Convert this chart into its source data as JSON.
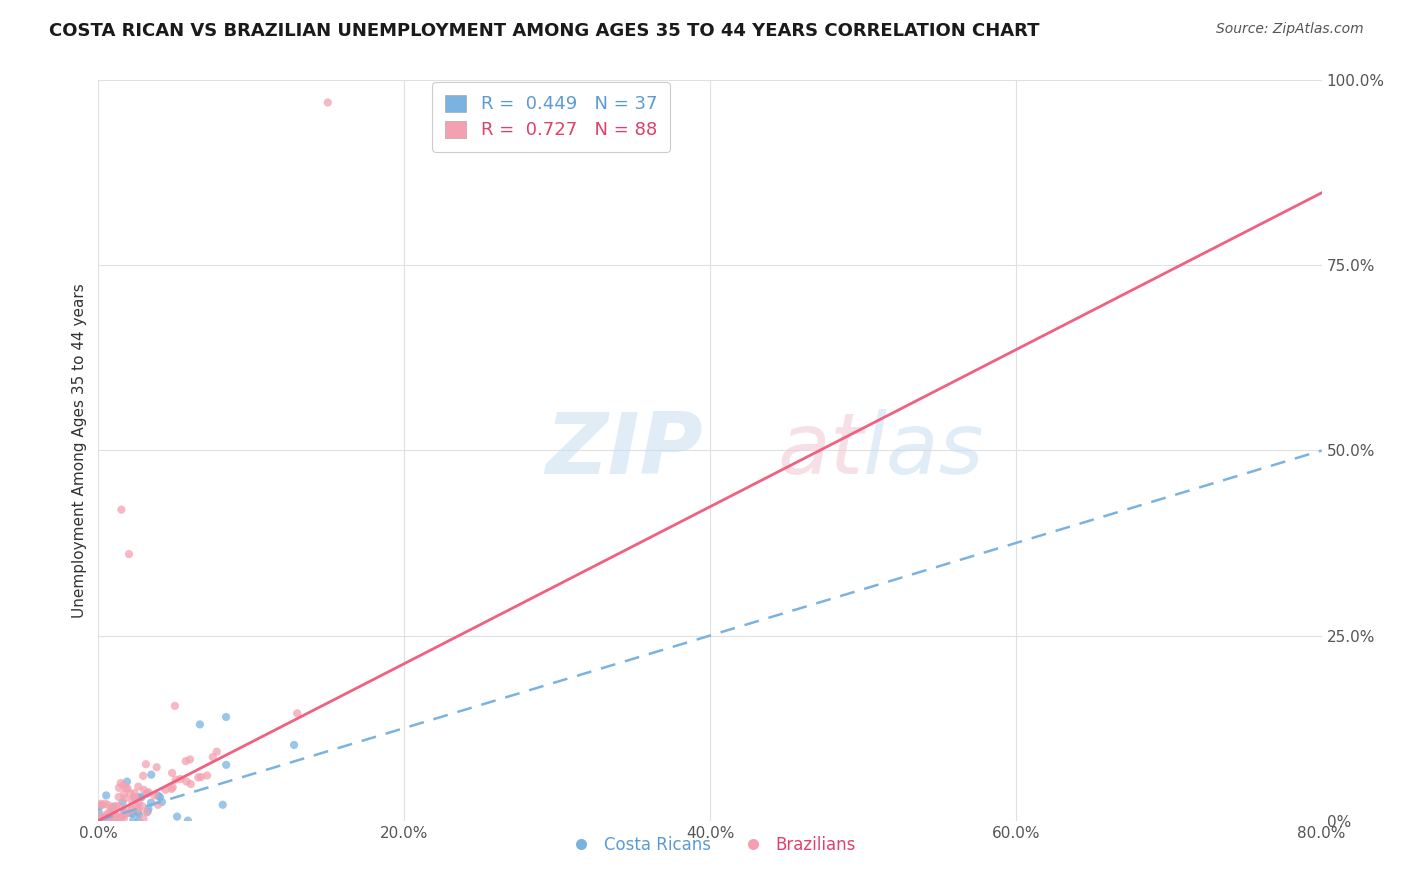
{
  "title": "COSTA RICAN VS BRAZILIAN UNEMPLOYMENT AMONG AGES 35 TO 44 YEARS CORRELATION CHART",
  "source": "Source: ZipAtlas.com",
  "xlabel_vals": [
    0.0,
    20.0,
    40.0,
    60.0,
    80.0
  ],
  "ylabel_vals": [
    0.0,
    25.0,
    50.0,
    75.0,
    100.0
  ],
  "xlim": [
    0.0,
    80.0
  ],
  "ylim": [
    0.0,
    100.0
  ],
  "costa_rica_R": 0.449,
  "costa_rica_N": 37,
  "brazil_R": 0.727,
  "brazil_N": 88,
  "cr_color": "#7ab3e0",
  "br_color": "#f4a0b0",
  "cr_line_color": "#7ab3e0",
  "br_line_color": "#f06080",
  "background_color": "#ffffff",
  "grid_color": "#e0e0e0",
  "cr_line_slope": 0.625,
  "cr_line_intercept": 0.0,
  "br_line_slope": 1.06,
  "br_line_intercept": 0.0,
  "ylabel_label": "Unemployment Among Ages 35 to 44 years",
  "watermark_zip_color": "#c8dff0",
  "watermark_atlas_color": "#f0c8d0",
  "title_fontsize": 13,
  "source_fontsize": 10,
  "tick_fontsize": 11,
  "ylabel_fontsize": 11
}
